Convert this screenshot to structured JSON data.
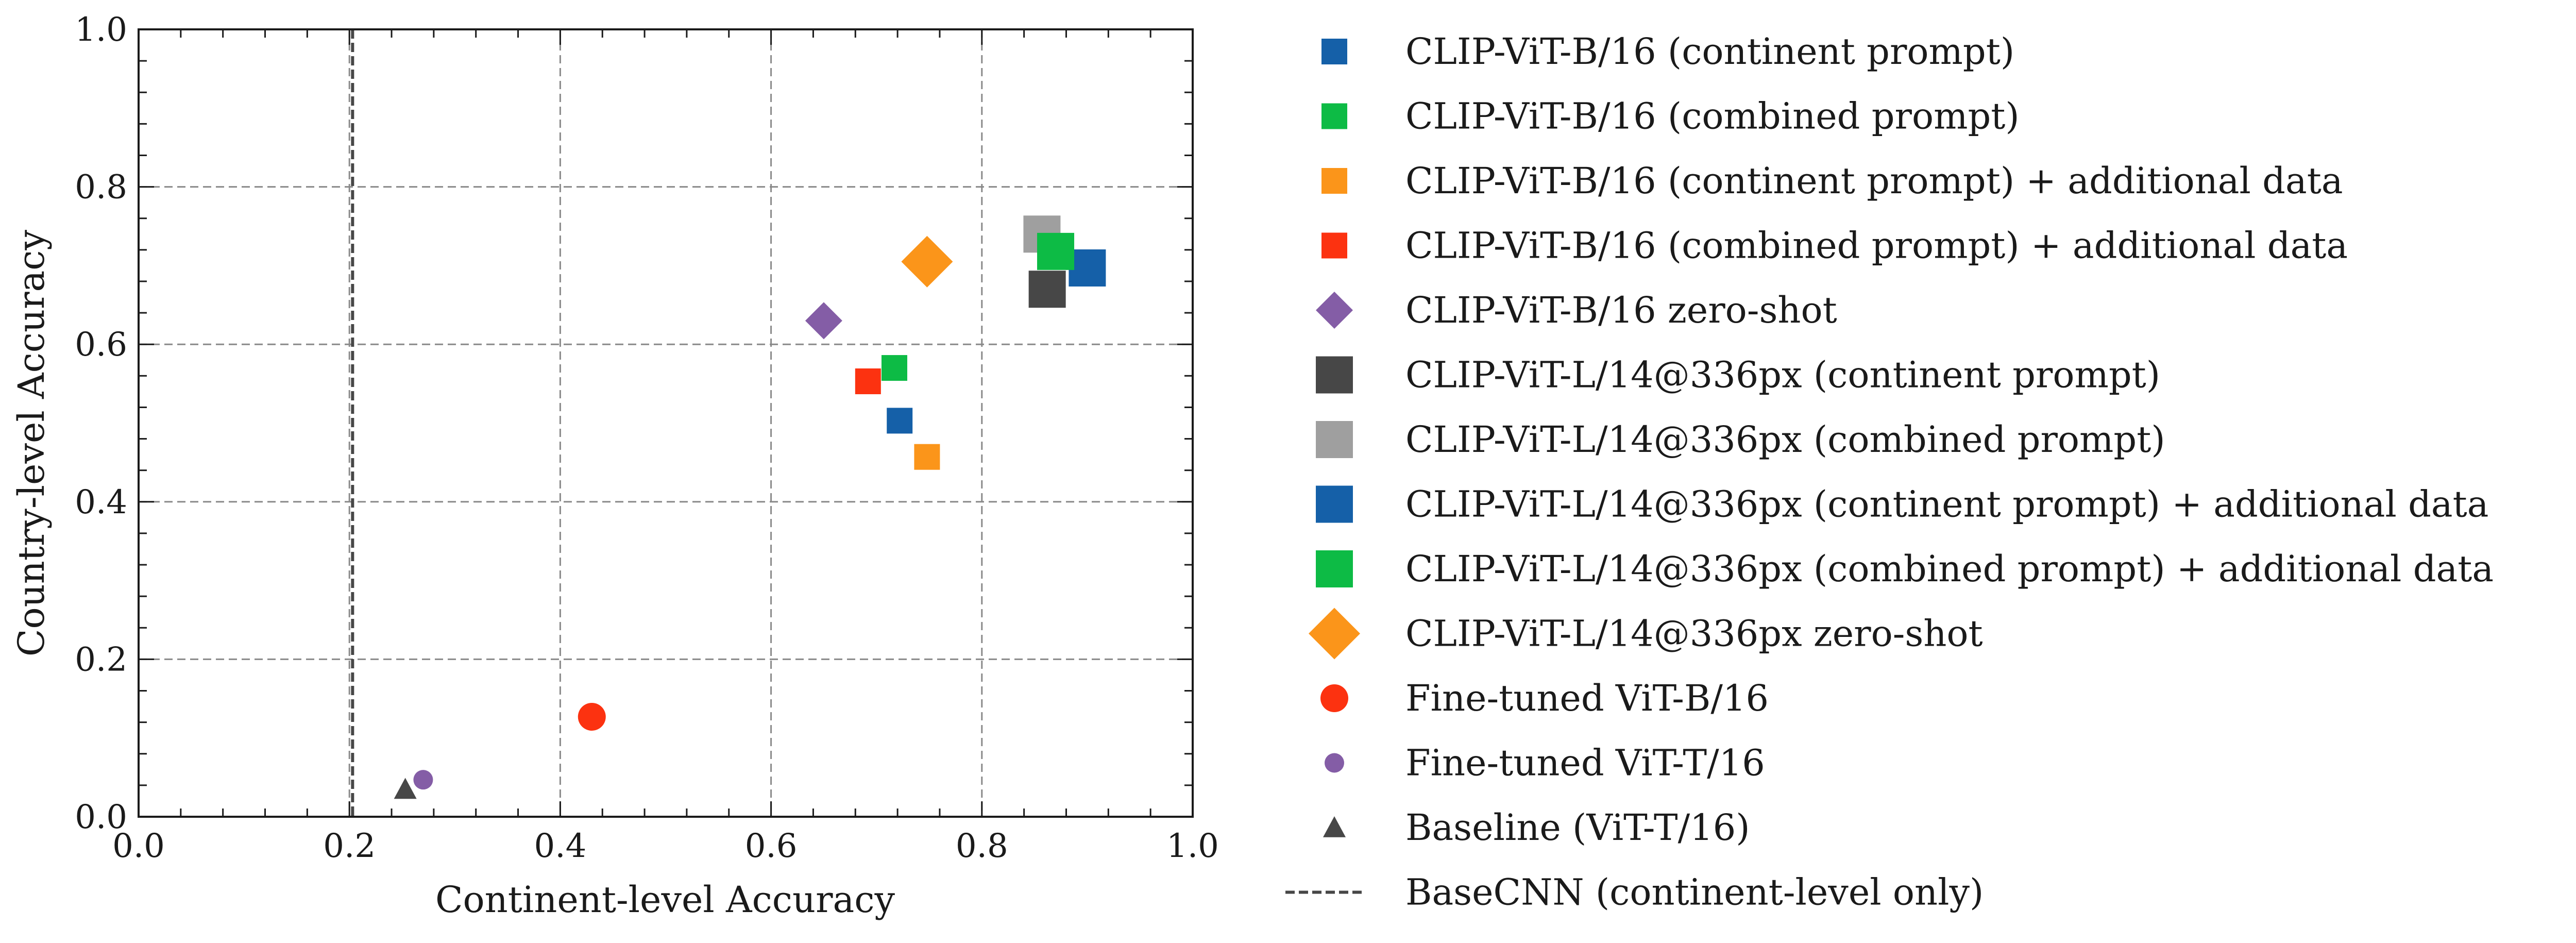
{
  "chart_data": {
    "type": "scatter",
    "xlabel": "Continent-level Accuracy",
    "ylabel": "Country-level Accuracy",
    "xlim": [
      0.0,
      1.0
    ],
    "ylim": [
      0.0,
      1.0
    ],
    "xticks": [
      "0.0",
      "0.2",
      "0.4",
      "0.6",
      "0.8",
      "1.0"
    ],
    "yticks": [
      "0.0",
      "0.2",
      "0.4",
      "0.6",
      "0.8",
      "1.0"
    ],
    "grid": true,
    "legend_position": "outside-right",
    "series": [
      {
        "name": "CLIP-ViT-B/16 (continent prompt)",
        "marker": "square",
        "size": "small",
        "color": "#1560a8",
        "x": 0.722,
        "y": 0.503
      },
      {
        "name": "CLIP-ViT-B/16 (combined prompt)",
        "marker": "square",
        "size": "small",
        "color": "#0dbb45",
        "x": 0.717,
        "y": 0.57
      },
      {
        "name": "CLIP-ViT-B/16 (continent prompt) + additional data",
        "marker": "square",
        "size": "small",
        "color": "#fb951a",
        "x": 0.748,
        "y": 0.457
      },
      {
        "name": "CLIP-ViT-B/16 (combined prompt) + additional data",
        "marker": "square",
        "size": "small",
        "color": "#fc3210",
        "x": 0.692,
        "y": 0.553
      },
      {
        "name": "CLIP-ViT-B/16 zero-shot",
        "marker": "diamond",
        "size": "small",
        "color": "#845da6",
        "x": 0.65,
        "y": 0.63
      },
      {
        "name": "CLIP-ViT-L/14@336px (continent prompt)",
        "marker": "square",
        "size": "large",
        "color": "#474747",
        "x": 0.862,
        "y": 0.67
      },
      {
        "name": "CLIP-ViT-L/14@336px (combined prompt)",
        "marker": "square",
        "size": "large",
        "color": "#9f9f9f",
        "x": 0.857,
        "y": 0.74
      },
      {
        "name": "CLIP-ViT-L/14@336px (continent prompt) + additional data",
        "marker": "square",
        "size": "large",
        "color": "#1560a8",
        "x": 0.9,
        "y": 0.697
      },
      {
        "name": "CLIP-ViT-L/14@336px (combined prompt) + additional data",
        "marker": "square",
        "size": "large",
        "color": "#0dbb45",
        "x": 0.87,
        "y": 0.718
      },
      {
        "name": "CLIP-ViT-L/14@336px zero-shot",
        "marker": "diamond",
        "size": "large",
        "color": "#fb951a",
        "x": 0.748,
        "y": 0.705
      },
      {
        "name": "Fine-tuned ViT-B/16",
        "marker": "circle",
        "size": "large",
        "color": "#fc3210",
        "x": 0.43,
        "y": 0.127
      },
      {
        "name": "Fine-tuned ViT-T/16",
        "marker": "circle",
        "size": "small",
        "color": "#845da6",
        "x": 0.27,
        "y": 0.047
      },
      {
        "name": "Baseline (ViT-T/16)",
        "marker": "triangle",
        "size": "small",
        "color": "#474747",
        "x": 0.253,
        "y": 0.035
      },
      {
        "name": "BaseCNN (continent-level only)",
        "marker": "dashed-vline",
        "color": "#474747",
        "x": 0.203
      }
    ]
  }
}
